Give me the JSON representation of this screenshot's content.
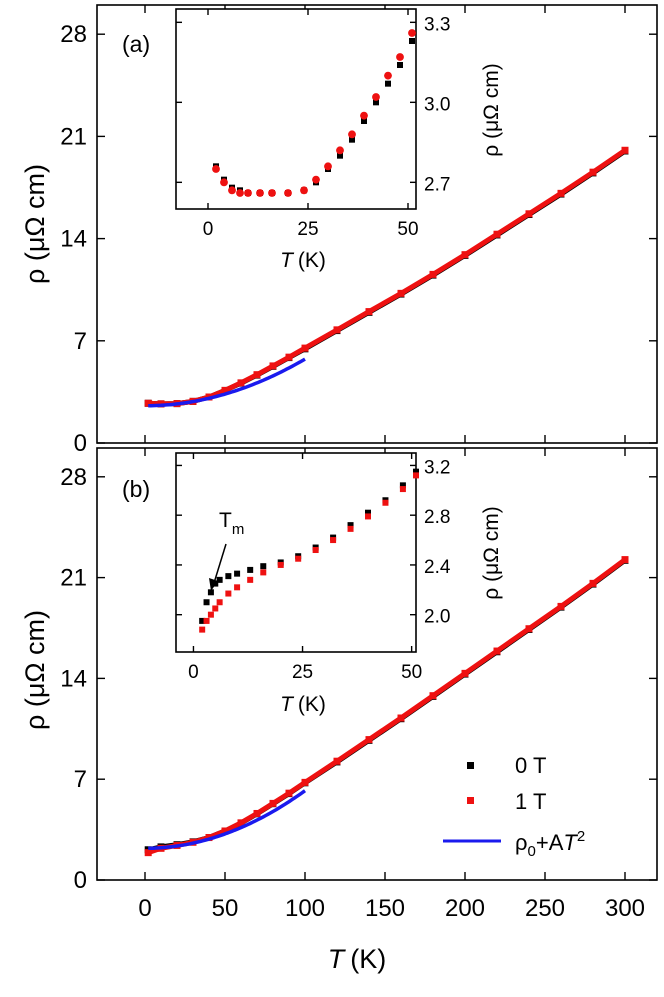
{
  "colors": {
    "zero_field": "#000000",
    "one_tesla": "#ee1111",
    "fit": "#1a1aee"
  },
  "chart_data": [
    {
      "panel": "main",
      "label": "(a)",
      "type": "scatter",
      "xlabel_symbol": "T",
      "xlabel_unit": "(K)",
      "ylabel": "ρ (μΩ cm)",
      "xlim": [
        -30,
        320
      ],
      "ylim": [
        0,
        30
      ],
      "xticks": [
        0,
        50,
        100,
        150,
        200,
        250,
        300
      ],
      "xtick_labels_visible": false,
      "yticks": [
        0,
        7,
        14,
        21,
        28
      ],
      "series": [
        {
          "key": "zero_field",
          "x": [
            2,
            10,
            20,
            30,
            40,
            50,
            60,
            70,
            80,
            90,
            100,
            120,
            140,
            160,
            180,
            200,
            220,
            240,
            260,
            280,
            300
          ],
          "y": [
            2.72,
            2.68,
            2.7,
            2.85,
            3.15,
            3.6,
            4.1,
            4.65,
            5.25,
            5.85,
            6.45,
            7.7,
            8.95,
            10.2,
            11.5,
            12.85,
            14.25,
            15.65,
            17.05,
            18.5,
            20.0
          ]
        },
        {
          "key": "one_tesla",
          "x": [
            2,
            10,
            20,
            30,
            40,
            50,
            60,
            70,
            80,
            90,
            100,
            120,
            140,
            160,
            180,
            200,
            220,
            240,
            260,
            280,
            300
          ],
          "y": [
            2.72,
            2.68,
            2.7,
            2.85,
            3.15,
            3.6,
            4.12,
            4.68,
            5.28,
            5.88,
            6.5,
            7.75,
            9.0,
            10.25,
            11.55,
            12.9,
            14.3,
            15.7,
            17.1,
            18.55,
            20.05
          ]
        },
        {
          "key": "fit",
          "type": "line",
          "x_range": [
            2,
            100
          ],
          "rho0": 2.55,
          "A": 0.00032
        }
      ]
    },
    {
      "panel": "inset",
      "type": "scatter",
      "xlabel_symbol": "T",
      "xlabel_unit": "(K)",
      "ylabel": "ρ (μΩ cm)",
      "xlim": [
        -8,
        52
      ],
      "ylim": [
        2.6,
        3.35
      ],
      "xticks": [
        0,
        25,
        50
      ],
      "yticks": [
        2.7,
        3.0,
        3.3
      ],
      "series": [
        {
          "key": "zero_field",
          "x": [
            2,
            4,
            6,
            8,
            10,
            13,
            16,
            20,
            24,
            27,
            30,
            33,
            36,
            39,
            42,
            45,
            48,
            51
          ],
          "y": [
            2.76,
            2.71,
            2.68,
            2.67,
            2.66,
            2.66,
            2.66,
            2.66,
            2.67,
            2.7,
            2.75,
            2.8,
            2.86,
            2.93,
            3.0,
            3.07,
            3.14,
            3.23
          ]
        },
        {
          "key": "one_tesla",
          "x": [
            2,
            4,
            6,
            8,
            10,
            13,
            16,
            20,
            24,
            27,
            30,
            33,
            36,
            39,
            42,
            45,
            48,
            51
          ],
          "y": [
            2.75,
            2.7,
            2.67,
            2.66,
            2.66,
            2.66,
            2.66,
            2.66,
            2.67,
            2.71,
            2.76,
            2.82,
            2.88,
            2.95,
            3.02,
            3.1,
            3.17,
            3.26
          ]
        }
      ]
    },
    {
      "panel": "main",
      "label": "(b)",
      "type": "scatter",
      "xlabel_symbol": "T",
      "xlabel_unit": "(K)",
      "ylabel": "ρ (μΩ cm)",
      "xlim": [
        -30,
        320
      ],
      "ylim": [
        0,
        30
      ],
      "xticks": [
        0,
        50,
        100,
        150,
        200,
        250,
        300
      ],
      "xtick_labels_visible": true,
      "yticks": [
        0,
        7,
        14,
        21,
        28
      ],
      "series": [
        {
          "key": "zero_field",
          "x": [
            2,
            10,
            20,
            30,
            40,
            50,
            60,
            70,
            80,
            90,
            100,
            120,
            140,
            160,
            180,
            200,
            220,
            240,
            260,
            280,
            300
          ],
          "y": [
            2.1,
            2.3,
            2.45,
            2.65,
            2.95,
            3.4,
            3.95,
            4.6,
            5.3,
            6.0,
            6.75,
            8.2,
            9.7,
            11.2,
            12.75,
            14.3,
            15.85,
            17.4,
            18.95,
            20.55,
            22.2
          ]
        },
        {
          "key": "one_tesla",
          "x": [
            2,
            10,
            20,
            30,
            40,
            50,
            60,
            70,
            80,
            90,
            100,
            120,
            140,
            160,
            180,
            200,
            220,
            240,
            260,
            280,
            300
          ],
          "y": [
            1.9,
            2.2,
            2.4,
            2.62,
            2.95,
            3.4,
            3.97,
            4.62,
            5.32,
            6.03,
            6.78,
            8.25,
            9.75,
            11.25,
            12.8,
            14.35,
            15.9,
            17.45,
            19.0,
            20.6,
            22.25
          ]
        },
        {
          "key": "fit",
          "type": "line",
          "x_range": [
            2,
            100
          ],
          "rho0": 2.2,
          "A": 0.0004
        }
      ]
    },
    {
      "panel": "inset",
      "type": "scatter",
      "xlabel_symbol": "T",
      "xlabel_unit": "(K)",
      "ylabel": "ρ (μΩ cm)",
      "xlim": [
        -4,
        51
      ],
      "ylim": [
        1.7,
        3.3
      ],
      "xticks": [
        0,
        25,
        50
      ],
      "yticks": [
        2.0,
        2.4,
        2.8,
        3.2
      ],
      "annotation": {
        "text": "T",
        "subscript": "m",
        "x": 5,
        "y": 2.25
      },
      "series": [
        {
          "key": "zero_field",
          "x": [
            2,
            3,
            4,
            5,
            6,
            8,
            10,
            13,
            16,
            20,
            24,
            28,
            32,
            36,
            40,
            44,
            48,
            51
          ],
          "y": [
            1.95,
            2.1,
            2.18,
            2.25,
            2.28,
            2.31,
            2.33,
            2.36,
            2.39,
            2.42,
            2.47,
            2.54,
            2.62,
            2.72,
            2.82,
            2.92,
            3.04,
            3.15
          ]
        },
        {
          "key": "one_tesla",
          "x": [
            2,
            3,
            4,
            5,
            6,
            8,
            10,
            13,
            16,
            20,
            24,
            28,
            32,
            36,
            40,
            44,
            48,
            51
          ],
          "y": [
            1.88,
            1.95,
            2.0,
            2.05,
            2.1,
            2.17,
            2.22,
            2.28,
            2.34,
            2.4,
            2.45,
            2.52,
            2.6,
            2.69,
            2.79,
            2.9,
            3.01,
            3.12
          ]
        }
      ]
    }
  ],
  "legend": {
    "placement": "bottom-right of panel (b)",
    "entries": [
      {
        "key": "zero_field",
        "label": "0 T"
      },
      {
        "key": "one_tesla",
        "label": "1 T"
      },
      {
        "key": "fit",
        "label_parts": [
          "ρ",
          "0",
          "+A",
          "T",
          "2"
        ]
      }
    ]
  }
}
